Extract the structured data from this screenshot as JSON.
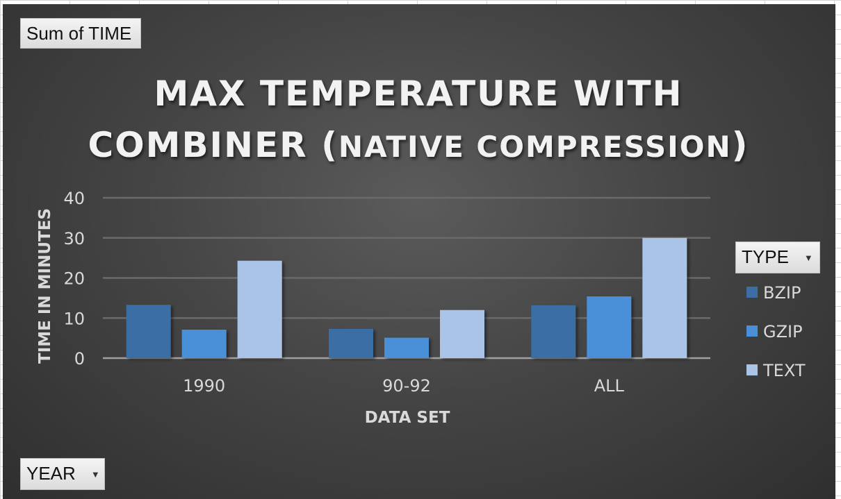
{
  "pivot_buttons": {
    "values_field": "Sum of TIME",
    "filter_field": "YEAR",
    "legend_field": "TYPE"
  },
  "colors": {
    "BZIP": "#3a6ea5",
    "GZIP": "#4a90d9",
    "TEXT": "#a9c4e6",
    "gridline": "#6a6a6a",
    "axis_text": "#d9d9d9",
    "title_text": "#f2f2f2"
  },
  "chart_data": {
    "type": "bar",
    "title_line1": "MAX TEMPERATURE WITH",
    "title_line2_a": "COMBINER (",
    "title_line2_b": "NATIVE COMPRESSION",
    "title_line2_c": ")",
    "xlabel": "DATA SET",
    "ylabel": "TIME IN MINUTES",
    "ylim": [
      0,
      40
    ],
    "yticks": [
      0,
      10,
      20,
      30,
      40
    ],
    "grid": true,
    "legend_position": "right",
    "categories": [
      "1990",
      "90-92",
      "ALL"
    ],
    "series": [
      {
        "name": "BZIP",
        "values": [
          13.3,
          7.3,
          13.2
        ]
      },
      {
        "name": "GZIP",
        "values": [
          7.1,
          5.1,
          15.4
        ]
      },
      {
        "name": "TEXT",
        "values": [
          24.3,
          12.0,
          30.0
        ]
      }
    ]
  }
}
